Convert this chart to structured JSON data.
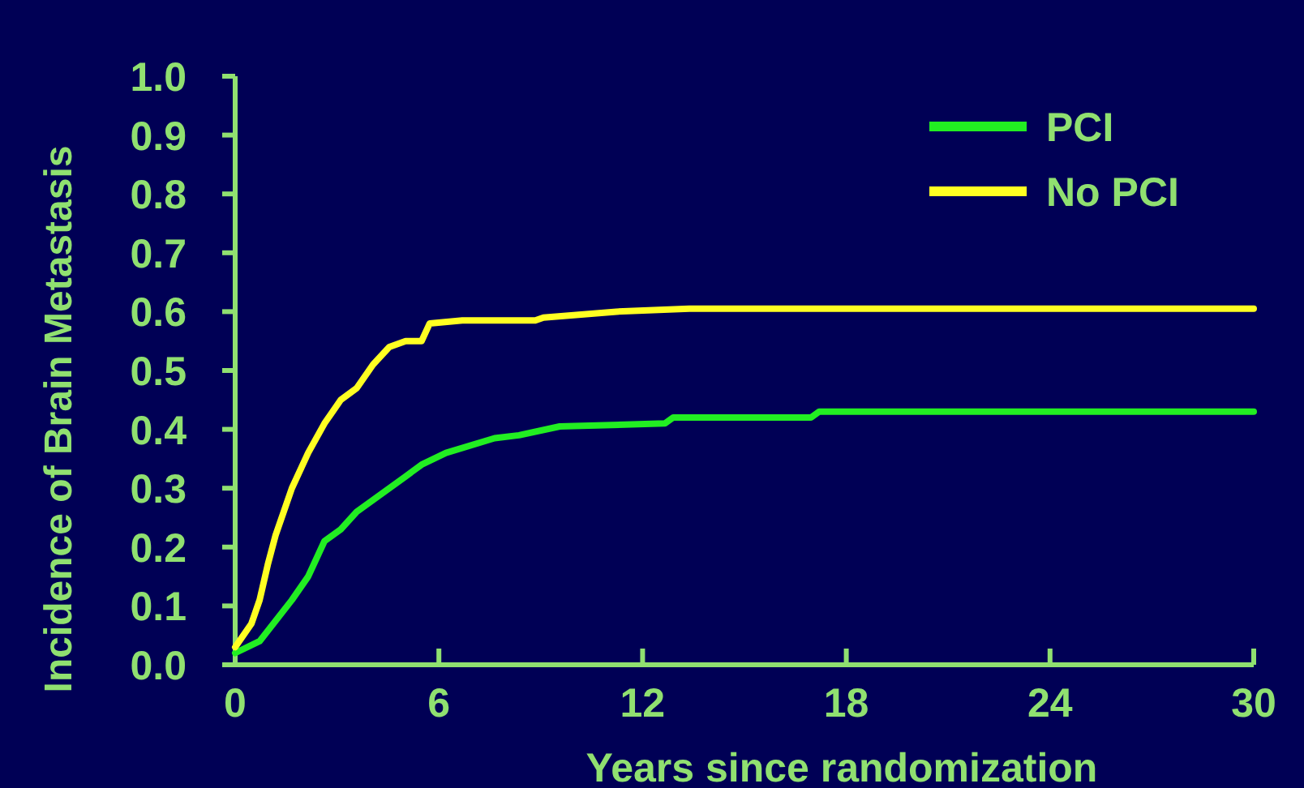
{
  "chart_data": {
    "type": "line",
    "xlabel": "Years since randomization",
    "ylabel": "Incidence of Brain Metastasis",
    "xlim": [
      0,
      30
    ],
    "ylim": [
      0,
      1
    ],
    "xticks": [
      0,
      6,
      12,
      18,
      24,
      30
    ],
    "yticks": [
      {
        "value": 0,
        "label": "0.0"
      },
      {
        "value": 0.1,
        "label": "0.1"
      },
      {
        "value": 0.2,
        "label": "0.2"
      },
      {
        "value": 0.3,
        "label": "0.3"
      },
      {
        "value": 0.4,
        "label": "0.4"
      },
      {
        "value": 0.5,
        "label": "0.5"
      },
      {
        "value": 0.6,
        "label": "0.6"
      },
      {
        "value": 0.7,
        "label": "0.7"
      },
      {
        "value": 0.8,
        "label": "0.8"
      },
      {
        "value": 0.9,
        "label": "0.9"
      },
      {
        "value": 1,
        "label": "1.0"
      }
    ],
    "legend": "top right",
    "grid": false,
    "line_style": "solid",
    "series": [
      {
        "name": "PCI",
        "color": "#22ee22",
        "x": [
          0,
          0.72,
          1.67,
          2.15,
          2.63,
          3.11,
          3.58,
          4.3,
          5.02,
          5.49,
          6.21,
          7.64,
          8.36,
          9.56,
          12.66,
          12.9,
          16.96,
          17.2,
          30
        ],
        "values": [
          0.02,
          0.04,
          0.11,
          0.15,
          0.21,
          0.23,
          0.26,
          0.29,
          0.32,
          0.34,
          0.36,
          0.385,
          0.39,
          0.405,
          0.41,
          0.42,
          0.42,
          0.43,
          0.43
        ]
      },
      {
        "name": "No PCI",
        "color": "#ffff22",
        "x": [
          0,
          0.48,
          0.72,
          0.96,
          1.19,
          1.67,
          2.15,
          2.63,
          3.11,
          3.58,
          4.06,
          4.54,
          5.02,
          5.49,
          5.73,
          6.69,
          8.84,
          9.08,
          11.23,
          13.38,
          30
        ],
        "values": [
          0.03,
          0.07,
          0.11,
          0.17,
          0.22,
          0.3,
          0.36,
          0.41,
          0.45,
          0.47,
          0.51,
          0.54,
          0.55,
          0.55,
          0.58,
          0.585,
          0.585,
          0.59,
          0.6,
          0.605,
          0.605
        ]
      }
    ]
  }
}
